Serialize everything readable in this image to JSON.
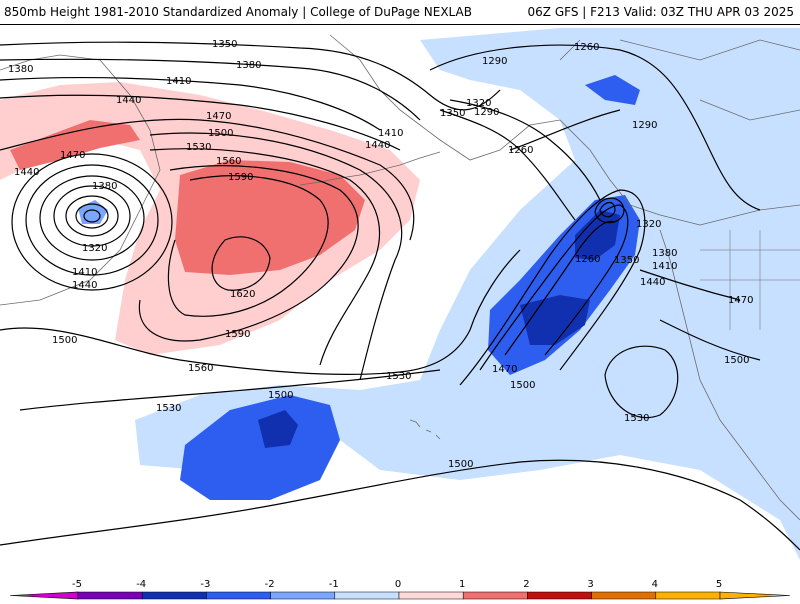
{
  "header": {
    "title_left": "850mb Height 1981-2010 Standardized Anomaly | College of DuPage NEXLAB",
    "title_right": "06Z GFS | F213 Valid: 03Z THU APR 03 2025"
  },
  "map": {
    "contour_labels": [
      {
        "id": "lbl-1350-top",
        "text": "1350"
      },
      {
        "id": "lbl-1380-tl",
        "text": "1380"
      },
      {
        "id": "lbl-1380-t",
        "text": "1380"
      },
      {
        "id": "lbl-1410-t",
        "text": "1410"
      },
      {
        "id": "lbl-1440-l",
        "text": "1440"
      },
      {
        "id": "lbl-1470-t",
        "text": "1470"
      },
      {
        "id": "lbl-1500-t",
        "text": "1500"
      },
      {
        "id": "lbl-1470-l",
        "text": "1470"
      },
      {
        "id": "lbl-1530-t",
        "text": "1530"
      },
      {
        "id": "lbl-1440-fl",
        "text": "1440"
      },
      {
        "id": "lbl-1560-t",
        "text": "1560"
      },
      {
        "id": "lbl-1590-t",
        "text": "1590"
      },
      {
        "id": "lbl-1380-low",
        "text": "1380"
      },
      {
        "id": "lbl-1320-low",
        "text": "1320"
      },
      {
        "id": "lbl-1410-low",
        "text": "1410"
      },
      {
        "id": "lbl-1440-low",
        "text": "1440"
      },
      {
        "id": "lbl-1620",
        "text": "1620"
      },
      {
        "id": "lbl-1590-c",
        "text": "1590"
      },
      {
        "id": "lbl-1560-c",
        "text": "1560"
      },
      {
        "id": "lbl-1500-l",
        "text": "1500"
      },
      {
        "id": "lbl-1530-c",
        "text": "1530"
      },
      {
        "id": "lbl-1530-mid",
        "text": "1530"
      },
      {
        "id": "lbl-1500-bot",
        "text": "1500"
      },
      {
        "id": "lbl-1500-pac",
        "text": "1500"
      },
      {
        "id": "lbl-1410-ak",
        "text": "1410"
      },
      {
        "id": "lbl-1440-ak",
        "text": "1440"
      },
      {
        "id": "lbl-1350-ak",
        "text": "1350"
      },
      {
        "id": "lbl-1320-ak",
        "text": "1320"
      },
      {
        "id": "lbl-1290-ak",
        "text": "1290"
      },
      {
        "id": "lbl-1290-ne",
        "text": "1290"
      },
      {
        "id": "lbl-1260-ne",
        "text": "1260"
      },
      {
        "id": "lbl-1290-e",
        "text": "1290"
      },
      {
        "id": "lbl-1260-ak",
        "text": "1260"
      },
      {
        "id": "lbl-1320-c",
        "text": "1320"
      },
      {
        "id": "lbl-1260-c",
        "text": "1260"
      },
      {
        "id": "lbl-1350-c",
        "text": "1350"
      },
      {
        "id": "lbl-1380-c",
        "text": "1380"
      },
      {
        "id": "lbl-1410-c",
        "text": "1410"
      },
      {
        "id": "lbl-1440-c",
        "text": "1440"
      },
      {
        "id": "lbl-1470-sw",
        "text": "1470"
      },
      {
        "id": "lbl-1500-sw",
        "text": "1500"
      },
      {
        "id": "lbl-1470-e",
        "text": "1470"
      },
      {
        "id": "lbl-1500-e",
        "text": "1500"
      },
      {
        "id": "lbl-1530-e",
        "text": "1530"
      }
    ]
  },
  "colorbar": {
    "ticks": [
      "-5",
      "-4",
      "-3",
      "-2",
      "-1",
      "0",
      "1",
      "2",
      "3",
      "4",
      "5"
    ],
    "colors": {
      "m5": "#d000d0",
      "m4": "#7a00b8",
      "m3": "#1030b0",
      "m2": "#2e5ef0",
      "m1": "#7aa6ff",
      "m05": "#c8e0ff",
      "p05": "#ffd0d0",
      "p1": "#ffb0b0",
      "p2": "#f07070",
      "p3": "#c01010",
      "p4": "#e07000",
      "p5": "#ffb000"
    }
  }
}
